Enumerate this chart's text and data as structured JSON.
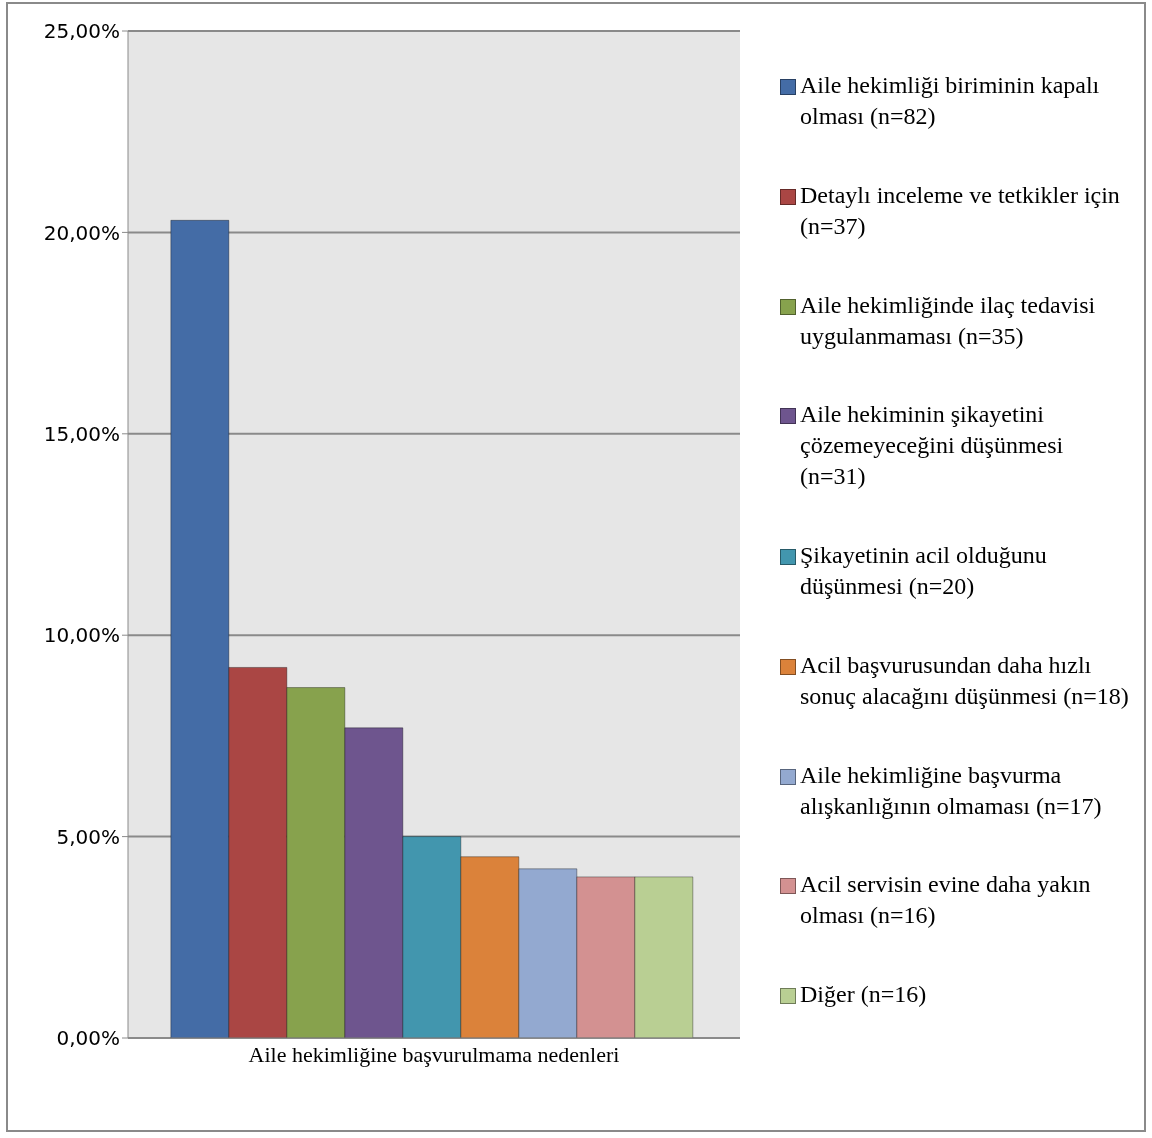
{
  "chart_data": {
    "type": "bar",
    "categories": [
      "Aile hekimliğine başvurulmama nedenleri"
    ],
    "series": [
      {
        "name": "Aile hekimliği biriminin kapalı olması (n=82)",
        "color": "#446ca6",
        "values": [
          20.3
        ]
      },
      {
        "name": "Detaylı inceleme ve tetkikler için (n=37)",
        "color": "#aa4644",
        "values": [
          9.2
        ]
      },
      {
        "name": "Aile hekimliğinde ilaç tedavisi uygulanmaması (n=35)",
        "color": "#87a24d",
        "values": [
          8.7
        ]
      },
      {
        "name": "Aile hekiminin şikayetini çözemeyeceğini düşünmesi (n=31)",
        "color": "#6e558e",
        "values": [
          7.7
        ]
      },
      {
        "name": "Şikayetinin acil olduğunu düşünmesi (n=20)",
        "color": "#4296ae",
        "values": [
          5.0
        ]
      },
      {
        "name": "Acil başvurusundan daha hızlı sonuç alacağını düşünmesi (n=18)",
        "color": "#db823a",
        "values": [
          4.5
        ]
      },
      {
        "name": "Aile hekimliğine başvurma alışkanlığının olmaması (n=17)",
        "color": "#93a9d0",
        "values": [
          4.2
        ]
      },
      {
        "name": "Acil servisin evine daha yakın olması (n=16)",
        "color": "#d39191",
        "values": [
          4.0
        ]
      },
      {
        "name": "Diğer (n=16)",
        "color": "#b9cf93",
        "values": [
          4.0
        ]
      }
    ],
    "ylim": [
      0,
      25
    ],
    "yticks": [
      {
        "value": 0,
        "label": "0,00%"
      },
      {
        "value": 5,
        "label": "5,00%"
      },
      {
        "value": 10,
        "label": "10,00%"
      },
      {
        "value": 15,
        "label": "15,00%"
      },
      {
        "value": 20,
        "label": "20,00%"
      },
      {
        "value": 25,
        "label": "25,00%"
      }
    ],
    "grid": "y",
    "legend": "right"
  }
}
